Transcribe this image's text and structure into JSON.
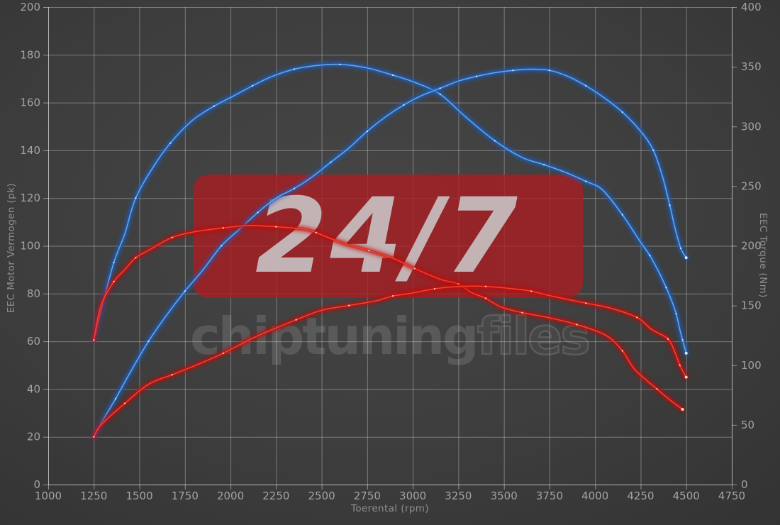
{
  "chart_data": {
    "type": "line",
    "xlabel": "Toerental (rpm)",
    "ylabel_left": "EEC Motor Vermogen (pk)",
    "ylabel_right": "EEC Torque (Nm)",
    "x_range": [
      1000,
      4750
    ],
    "y_left_range": [
      0,
      200
    ],
    "y_right_range": [
      0,
      400
    ],
    "x_ticks": [
      1000,
      1250,
      1500,
      1750,
      2000,
      2250,
      2500,
      2750,
      3000,
      3250,
      3500,
      3750,
      4000,
      4250,
      4500,
      4750
    ],
    "y_left_ticks": [
      0,
      20,
      40,
      60,
      80,
      100,
      120,
      140,
      160,
      180,
      200
    ],
    "y_right_ticks": [
      0,
      50,
      100,
      150,
      200,
      250,
      300,
      350,
      400
    ],
    "grid": true,
    "legend": "none",
    "series": [
      {
        "name": "blue-torque",
        "axis": "right",
        "unit": "Nm",
        "glow": "#1f5fbe",
        "core": "#6aa6e8",
        "dot": "#d6e9ff",
        "points": [
          [
            1250,
            121
          ],
          [
            1300,
            152
          ],
          [
            1360,
            186
          ],
          [
            1420,
            210
          ],
          [
            1480,
            240
          ],
          [
            1580,
            267
          ],
          [
            1670,
            286
          ],
          [
            1790,
            305
          ],
          [
            1910,
            317
          ],
          [
            2010,
            325
          ],
          [
            2120,
            334
          ],
          [
            2230,
            342
          ],
          [
            2350,
            348
          ],
          [
            2470,
            351
          ],
          [
            2600,
            352
          ],
          [
            2750,
            349
          ],
          [
            2890,
            343
          ],
          [
            3010,
            337
          ],
          [
            3150,
            327
          ],
          [
            3290,
            308
          ],
          [
            3450,
            288
          ],
          [
            3600,
            274
          ],
          [
            3720,
            268
          ],
          [
            3830,
            262
          ],
          [
            3950,
            254
          ],
          [
            4040,
            247
          ],
          [
            4150,
            226
          ],
          [
            4250,
            203
          ],
          [
            4300,
            192
          ],
          [
            4350,
            178
          ],
          [
            4390,
            165
          ],
          [
            4420,
            154
          ],
          [
            4445,
            143
          ],
          [
            4465,
            130
          ],
          [
            4480,
            121
          ],
          [
            4500,
            110
          ]
        ]
      },
      {
        "name": "blue-power",
        "axis": "left",
        "unit": "pk",
        "glow": "#1f5fbe",
        "core": "#6aa6e8",
        "dot": "#d6e9ff",
        "points": [
          [
            1250,
            20
          ],
          [
            1300,
            27
          ],
          [
            1370,
            36
          ],
          [
            1450,
            47
          ],
          [
            1550,
            60
          ],
          [
            1650,
            71
          ],
          [
            1750,
            81
          ],
          [
            1850,
            90
          ],
          [
            1950,
            100
          ],
          [
            2050,
            107
          ],
          [
            2150,
            114
          ],
          [
            2250,
            120
          ],
          [
            2350,
            124
          ],
          [
            2450,
            129
          ],
          [
            2550,
            135
          ],
          [
            2650,
            141
          ],
          [
            2750,
            148
          ],
          [
            2850,
            154
          ],
          [
            2950,
            159
          ],
          [
            3050,
            163
          ],
          [
            3150,
            166
          ],
          [
            3250,
            169
          ],
          [
            3350,
            171
          ],
          [
            3450,
            172.5
          ],
          [
            3550,
            173.5
          ],
          [
            3650,
            174
          ],
          [
            3750,
            173.5
          ],
          [
            3850,
            171
          ],
          [
            3950,
            167
          ],
          [
            4050,
            162
          ],
          [
            4150,
            156
          ],
          [
            4250,
            148
          ],
          [
            4320,
            140
          ],
          [
            4370,
            129
          ],
          [
            4410,
            117
          ],
          [
            4440,
            107
          ],
          [
            4470,
            99
          ],
          [
            4500,
            95
          ]
        ]
      },
      {
        "name": "red-torque",
        "axis": "right",
        "unit": "Nm",
        "glow": "#c01008",
        "core": "#f8402f",
        "dot": "#ffd2ca",
        "points": [
          [
            1250,
            121
          ],
          [
            1290,
            150
          ],
          [
            1360,
            170
          ],
          [
            1420,
            180
          ],
          [
            1480,
            190
          ],
          [
            1560,
            197
          ],
          [
            1680,
            207
          ],
          [
            1810,
            212
          ],
          [
            1960,
            215
          ],
          [
            2100,
            217
          ],
          [
            2250,
            216
          ],
          [
            2400,
            214
          ],
          [
            2470,
            211
          ],
          [
            2620,
            202
          ],
          [
            2760,
            196
          ],
          [
            2900,
            189
          ],
          [
            3010,
            181
          ],
          [
            3150,
            172
          ],
          [
            3250,
            168
          ],
          [
            3320,
            161
          ],
          [
            3400,
            156
          ],
          [
            3480,
            149
          ],
          [
            3600,
            144
          ],
          [
            3740,
            140
          ],
          [
            3900,
            134
          ],
          [
            4060,
            125
          ],
          [
            4150,
            112
          ],
          [
            4220,
            96
          ],
          [
            4340,
            80
          ],
          [
            4410,
            71
          ],
          [
            4480,
            63
          ]
        ]
      },
      {
        "name": "red-power",
        "axis": "left",
        "unit": "pk",
        "glow": "#c01008",
        "core": "#f8402f",
        "dot": "#ffd2ca",
        "points": [
          [
            1250,
            20
          ],
          [
            1290,
            25
          ],
          [
            1420,
            34
          ],
          [
            1550,
            42
          ],
          [
            1680,
            46
          ],
          [
            1810,
            50
          ],
          [
            1960,
            55
          ],
          [
            2140,
            62
          ],
          [
            2360,
            69
          ],
          [
            2500,
            73
          ],
          [
            2650,
            75
          ],
          [
            2800,
            77
          ],
          [
            2890,
            79
          ],
          [
            2980,
            80
          ],
          [
            3120,
            82
          ],
          [
            3260,
            83
          ],
          [
            3400,
            83
          ],
          [
            3550,
            82
          ],
          [
            3650,
            81
          ],
          [
            3760,
            79
          ],
          [
            3950,
            76
          ],
          [
            4080,
            74
          ],
          [
            4230,
            70
          ],
          [
            4310,
            65
          ],
          [
            4400,
            61
          ],
          [
            4440,
            55
          ],
          [
            4465,
            50
          ],
          [
            4500,
            45
          ]
        ]
      }
    ]
  },
  "watermark": {
    "badge_text": "24/7",
    "brand_primary": "chiptuning",
    "brand_secondary": "files",
    "badge_color": "#ac1c21"
  },
  "colors": {
    "background": "#3d3d3d",
    "grid": "#ffffff",
    "tick_text": "#a3a3a3",
    "axis_title_text": "#8f8f8f",
    "blue_curve": "#6aa6e8",
    "red_curve": "#f8402f"
  }
}
